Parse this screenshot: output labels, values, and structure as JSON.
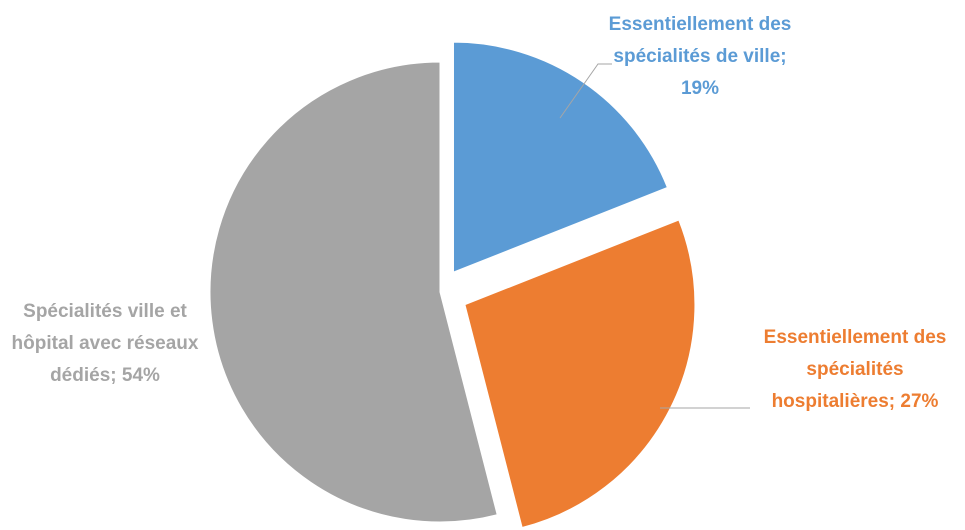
{
  "chart_data": {
    "type": "pie",
    "values": [
      19,
      27,
      54
    ],
    "value_labels": [
      "Essentiellement des spécialités de ville; 19%",
      "Essentiellement des spécialités hospitalières; 27%",
      "Spécialités ville et hôpital avec réseaux dédiés; 54%"
    ],
    "colors": [
      "#5b9bd5",
      "#ed7d31",
      "#a5a5a5"
    ]
  }
}
